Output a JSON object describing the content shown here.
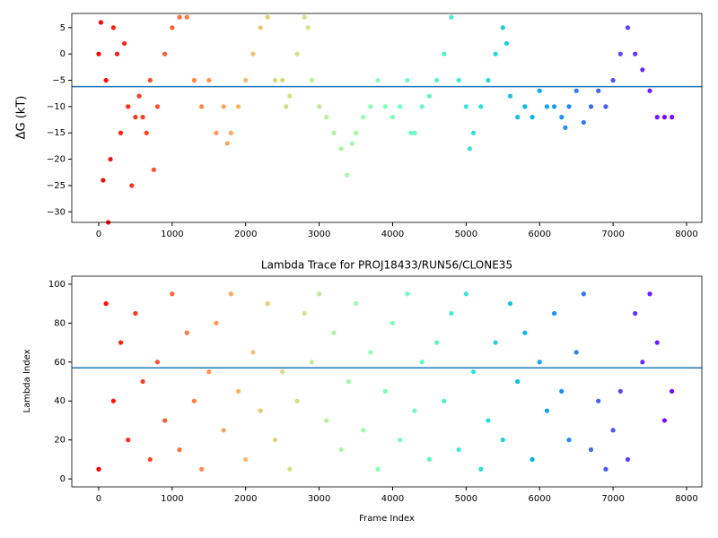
{
  "chart_data": [
    {
      "type": "scatter",
      "y_label": "ΔG (kT)",
      "colormap": "rainbow_r",
      "hline": -6.2,
      "hline_color": "#1f77b4",
      "x": [
        0,
        30,
        60,
        100,
        130,
        160,
        200,
        250,
        300,
        350,
        400,
        450,
        500,
        550,
        600,
        650,
        700,
        750,
        800,
        900,
        1000,
        1100,
        1200,
        1300,
        1400,
        1500,
        1600,
        1700,
        1750,
        1800,
        1900,
        2000,
        2100,
        2200,
        2300,
        2400,
        2500,
        2550,
        2600,
        2700,
        2800,
        2850,
        2900,
        3000,
        3100,
        3200,
        3300,
        3380,
        3450,
        3500,
        3600,
        3700,
        3800,
        3900,
        4000,
        4100,
        4200,
        4250,
        4300,
        4400,
        4500,
        4600,
        4700,
        4800,
        4900,
        5000,
        5050,
        5100,
        5200,
        5300,
        5400,
        5500,
        5550,
        5600,
        5700,
        5800,
        5900,
        6000,
        6100,
        6200,
        6300,
        6350,
        6400,
        6500,
        6600,
        6700,
        6800,
        6900,
        7000,
        7100,
        7200,
        7300,
        7400,
        7500,
        7600,
        7700,
        7800
      ],
      "values": [
        0,
        6,
        -24,
        -5,
        -32,
        -20,
        5,
        0,
        -15,
        2,
        -10,
        -25,
        -12,
        -8,
        -12,
        -15,
        -5,
        -22,
        -10,
        0,
        5,
        7,
        7,
        -5,
        -10,
        -5,
        -15,
        -10,
        -17,
        -15,
        -10,
        -5,
        0,
        5,
        7,
        -5,
        -5,
        -10,
        -8,
        0,
        7,
        5,
        -5,
        -10,
        -12,
        -15,
        -18,
        -23,
        -17,
        -15,
        -12,
        -10,
        -5,
        -10,
        -12,
        -10,
        -5,
        -15,
        -15,
        -10,
        -8,
        -5,
        0,
        7,
        -5,
        -10,
        -18,
        -15,
        -10,
        -5,
        0,
        5,
        2,
        -8,
        -12,
        -10,
        -12,
        -7,
        -10,
        -10,
        -12,
        -14,
        -10,
        -7,
        -13,
        -10,
        -7,
        -10,
        -5,
        0,
        5,
        0,
        -3,
        -7,
        -12,
        -12,
        -12
      ],
      "xlim": [
        -366,
        8208
      ],
      "ylim": [
        -32,
        7.7
      ],
      "xticks": [
        0,
        1000,
        2000,
        3000,
        4000,
        5000,
        6000,
        7000,
        8000
      ],
      "yticks": [
        {
          "value": -30,
          "label": "−30"
        },
        {
          "value": -25,
          "label": "−25"
        },
        {
          "value": -20,
          "label": "−20"
        },
        {
          "value": -15,
          "label": "−15"
        },
        {
          "value": -10,
          "label": "−10"
        },
        {
          "value": -5,
          "label": "−5"
        },
        0,
        5
      ]
    },
    {
      "type": "scatter",
      "title": "Lambda Trace for PROJ18433/RUN56/CLONE35",
      "x_label": "Frame Index",
      "y_label": "Lambda Index",
      "colormap": "rainbow_r",
      "hline": 57,
      "hline_color": "#1f77b4",
      "x": [
        0,
        100,
        200,
        300,
        400,
        500,
        600,
        700,
        800,
        900,
        1000,
        1100,
        1200,
        1300,
        1400,
        1500,
        1600,
        1700,
        1800,
        1900,
        2000,
        2100,
        2200,
        2300,
        2400,
        2500,
        2600,
        2700,
        2800,
        2900,
        3000,
        3100,
        3200,
        3300,
        3400,
        3500,
        3600,
        3700,
        3800,
        3900,
        4000,
        4100,
        4200,
        4300,
        4400,
        4500,
        4600,
        4700,
        4800,
        4900,
        5000,
        5100,
        5200,
        5300,
        5400,
        5500,
        5600,
        5700,
        5800,
        5900,
        6000,
        6100,
        6200,
        6300,
        6400,
        6500,
        6600,
        6700,
        6800,
        6900,
        7000,
        7100,
        7200,
        7300,
        7400,
        7500,
        7600,
        7700,
        7800
      ],
      "values": [
        5,
        90,
        40,
        70,
        20,
        85,
        50,
        10,
        60,
        30,
        95,
        15,
        75,
        40,
        5,
        55,
        80,
        25,
        95,
        45,
        10,
        65,
        35,
        90,
        20,
        55,
        5,
        40,
        85,
        60,
        95,
        30,
        75,
        15,
        50,
        90,
        25,
        65,
        5,
        45,
        80,
        20,
        95,
        35,
        60,
        10,
        70,
        40,
        85,
        15,
        95,
        55,
        5,
        30,
        70,
        20,
        90,
        50,
        75,
        10,
        60,
        35,
        85,
        45,
        20,
        65,
        95,
        15,
        40,
        5,
        25,
        45,
        10,
        85,
        60,
        95,
        70,
        30,
        45
      ],
      "xlim": [
        -366,
        8208
      ],
      "ylim": [
        -4.1,
        104.1
      ],
      "xticks": [
        0,
        1000,
        2000,
        3000,
        4000,
        5000,
        6000,
        7000,
        8000
      ],
      "yticks": [
        0,
        20,
        40,
        60,
        80,
        100
      ]
    }
  ]
}
